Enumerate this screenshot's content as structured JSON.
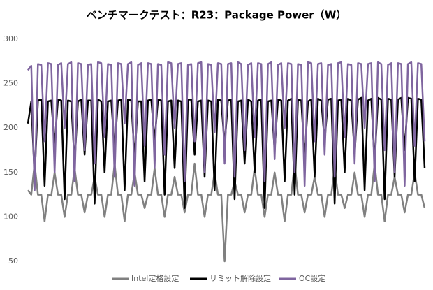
{
  "chart_data": {
    "type": "line",
    "title": "ベンチマークテスト：R23：Package Power（W）",
    "ylim": [
      50,
      300
    ],
    "yticks": [
      50,
      100,
      150,
      200,
      250,
      300
    ],
    "grid": false,
    "legend": "bottom",
    "series": [
      {
        "name": "Intel定格設定",
        "color": "#808080",
        "values": [
          130,
          125,
          160,
          125,
          125,
          95,
          125,
          124,
          150,
          125,
          125,
          100,
          125,
          125,
          155,
          125,
          125,
          105,
          125,
          125,
          145,
          125,
          125,
          100,
          125,
          125,
          160,
          125,
          125,
          95,
          125,
          125,
          150,
          125,
          125,
          110,
          125,
          125,
          155,
          125,
          125,
          100,
          125,
          125,
          145,
          125,
          125,
          105,
          125,
          125,
          160,
          125,
          125,
          100,
          125,
          125,
          150,
          125,
          125,
          50,
          125,
          125,
          140,
          125,
          125,
          105,
          125,
          125,
          155,
          125,
          125,
          100,
          125,
          125,
          150,
          125,
          125,
          95,
          125,
          125,
          160,
          125,
          125,
          105,
          125,
          125,
          145,
          125,
          125,
          100,
          125,
          125,
          155,
          125,
          125,
          110,
          125,
          125,
          150,
          125,
          125,
          100,
          125,
          125,
          160,
          125,
          125,
          95,
          125,
          125,
          145,
          125,
          125,
          105,
          125,
          125,
          150,
          125,
          125,
          110
        ]
      },
      {
        "name": "リミット解除設定",
        "color": "#000000",
        "values": [
          205,
          230,
          145,
          231,
          232,
          135,
          230,
          231,
          180,
          232,
          231,
          120,
          231,
          230,
          160,
          230,
          232,
          170,
          231,
          231,
          115,
          232,
          230,
          150,
          230,
          231,
          175,
          231,
          232,
          130,
          232,
          231,
          165,
          230,
          230,
          140,
          231,
          232,
          185,
          232,
          231,
          125,
          230,
          231,
          155,
          231,
          230,
          110,
          232,
          232,
          170,
          230,
          231,
          145,
          231,
          230,
          130,
          232,
          231,
          180,
          231,
          232,
          120,
          230,
          231,
          160,
          232,
          230,
          150,
          231,
          232,
          110,
          230,
          231,
          175,
          232,
          231,
          140,
          231,
          233,
          125,
          232,
          231,
          165,
          230,
          232,
          145,
          233,
          231,
          185,
          232,
          233,
          115,
          231,
          232,
          150,
          233,
          231,
          170,
          232,
          234,
          130,
          231,
          233,
          160,
          234,
          232,
          120,
          233,
          232,
          145,
          232,
          234,
          175,
          234,
          233,
          140,
          233,
          232,
          155
        ]
      },
      {
        "name": "OC設定",
        "color": "#7f659f",
        "values": [
          265,
          270,
          130,
          272,
          271,
          185,
          273,
          272,
          150,
          271,
          273,
          200,
          272,
          274,
          140,
          273,
          272,
          175,
          271,
          272,
          160,
          274,
          273,
          190,
          272,
          271,
          145,
          273,
          272,
          205,
          272,
          274,
          135,
          271,
          273,
          180,
          273,
          272,
          155,
          272,
          271,
          170,
          274,
          273,
          200,
          272,
          273,
          140,
          271,
          272,
          185,
          273,
          274,
          150,
          272,
          271,
          195,
          273,
          272,
          160,
          272,
          273,
          145,
          274,
          272,
          175,
          271,
          273,
          190,
          273,
          272,
          140,
          272,
          274,
          165,
          271,
          273,
          200,
          273,
          272,
          150,
          272,
          271,
          135,
          274,
          273,
          185,
          272,
          273,
          170,
          271,
          272,
          145,
          273,
          274,
          190,
          272,
          271,
          160,
          273,
          272,
          200,
          272,
          273,
          140,
          274,
          272,
          175,
          271,
          273,
          150,
          273,
          272,
          135,
          272,
          274,
          180,
          273,
          272,
          185
        ]
      }
    ]
  }
}
